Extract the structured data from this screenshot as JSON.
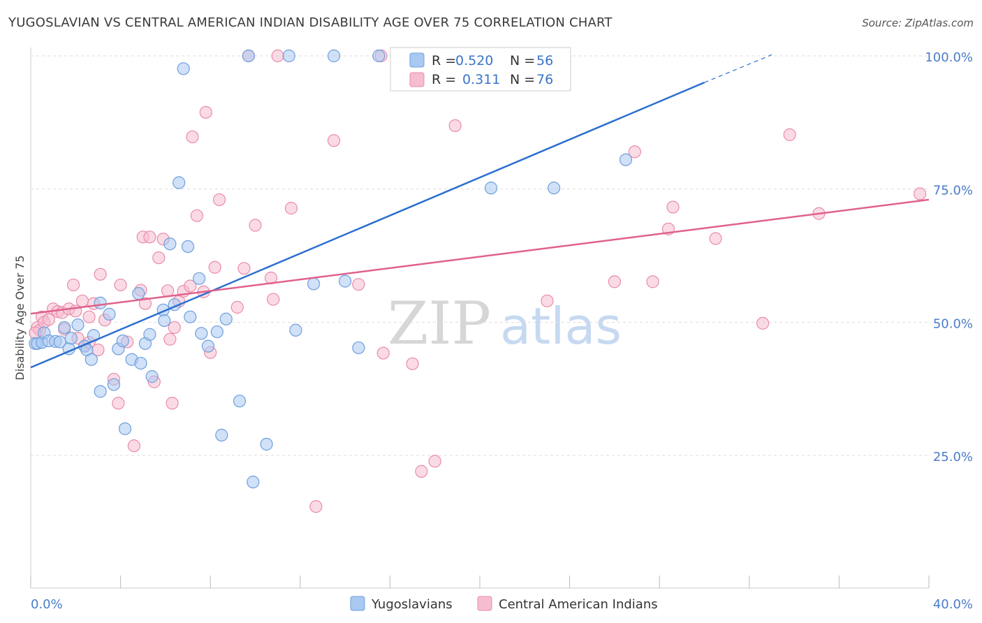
{
  "title": "YUGOSLAVIAN VS CENTRAL AMERICAN INDIAN DISABILITY AGE OVER 75 CORRELATION CHART",
  "source": "Source: ZipAtlas.com",
  "watermark": {
    "zip": "ZIP",
    "atlas": "atlas"
  },
  "colors": {
    "blue_fill": "#a9c8f2",
    "blue_stroke": "#6f9fdc",
    "blue_line": "#2a6fd0",
    "pink_fill": "#f6bdd0",
    "pink_stroke": "#e98bab",
    "pink_line": "#e0618c",
    "grid": "#dddddd",
    "tick_text": "#4a7cc9"
  },
  "legend": {
    "rows": [
      {
        "r_label": "R =",
        "r_value": "0.520",
        "n_label": "N =",
        "n_value": "56",
        "series": "blue"
      },
      {
        "r_label": "R =",
        "r_value": "0.311",
        "n_label": "N =",
        "n_value": "76",
        "series": "pink"
      }
    ]
  },
  "bottom_legend": [
    {
      "label": "Yugoslavians",
      "series": "blue"
    },
    {
      "label": "Central American Indians",
      "series": "pink"
    }
  ],
  "chart_data": {
    "type": "scatter",
    "title": "YUGOSLAVIAN VS CENTRAL AMERICAN INDIAN DISABILITY AGE OVER 75 CORRELATION CHART",
    "xlabel": "",
    "ylabel": "Disability Age Over 75",
    "xlim": [
      0,
      40
    ],
    "ylim": [
      0,
      105
    ],
    "x_tick_labels": [
      {
        "value": 0,
        "label": "0.0%"
      },
      {
        "value": 40,
        "label": "40.0%"
      }
    ],
    "y_tick_labels": [
      {
        "value": 25,
        "label": "25.0%"
      },
      {
        "value": 50,
        "label": "50.0%"
      },
      {
        "value": 75,
        "label": "75.0%"
      },
      {
        "value": 100,
        "label": "100.0%"
      }
    ],
    "grid": true,
    "series": [
      {
        "name": "Yugoslavians",
        "color": "blue",
        "trend": {
          "x0": 0,
          "y0": 41.5,
          "x1": 30.0,
          "y1": 95.0,
          "dash_to_x": 33.0,
          "dash_to_y": 100.2
        },
        "points": [
          [
            0.2,
            46
          ],
          [
            0.3,
            46
          ],
          [
            0.5,
            46.2
          ],
          [
            0.6,
            48
          ],
          [
            0.8,
            46.5
          ],
          [
            1.1,
            46.4
          ],
          [
            1.3,
            46.3
          ],
          [
            1.5,
            49
          ],
          [
            1.7,
            45
          ],
          [
            1.8,
            47
          ],
          [
            2.1,
            49.5
          ],
          [
            2.4,
            45.5
          ],
          [
            2.5,
            44.8
          ],
          [
            2.7,
            43
          ],
          [
            2.8,
            47.5
          ],
          [
            3.1,
            37
          ],
          [
            3.1,
            53.6
          ],
          [
            3.5,
            51.5
          ],
          [
            3.7,
            38.3
          ],
          [
            3.9,
            45
          ],
          [
            4.1,
            46.5
          ],
          [
            4.2,
            30
          ],
          [
            4.5,
            43
          ],
          [
            4.8,
            55.4
          ],
          [
            4.9,
            42.3
          ],
          [
            5.1,
            46
          ],
          [
            5.3,
            47.7
          ],
          [
            5.4,
            39.8
          ],
          [
            5.9,
            52.3
          ],
          [
            5.95,
            50.3
          ],
          [
            6.2,
            64.7
          ],
          [
            6.4,
            53.3
          ],
          [
            6.6,
            76.2
          ],
          [
            6.8,
            97.6
          ],
          [
            7.0,
            64.2
          ],
          [
            7.1,
            51
          ],
          [
            7.5,
            58.2
          ],
          [
            7.6,
            47.9
          ],
          [
            7.9,
            45.5
          ],
          [
            8.3,
            48.2
          ],
          [
            8.5,
            28.8
          ],
          [
            8.7,
            50.6
          ],
          [
            9.3,
            35.2
          ],
          [
            9.7,
            100
          ],
          [
            9.9,
            20
          ],
          [
            10.5,
            27.1
          ],
          [
            11.5,
            100
          ],
          [
            11.8,
            48.5
          ],
          [
            12.6,
            57.2
          ],
          [
            13.5,
            100
          ],
          [
            14.0,
            57.7
          ],
          [
            14.6,
            45.2
          ],
          [
            15.5,
            100
          ],
          [
            23.3,
            75.2
          ],
          [
            26.5,
            80.5
          ],
          [
            20.5,
            75.2
          ]
        ]
      },
      {
        "name": "Central American Indians",
        "color": "pink",
        "trend": {
          "x0": 0,
          "y0": 51.6,
          "x1": 40,
          "y1": 73.0
        },
        "points": [
          [
            0.3,
            49
          ],
          [
            0.4,
            48.5
          ],
          [
            0.5,
            51
          ],
          [
            0.6,
            50
          ],
          [
            0.8,
            50.5
          ],
          [
            1.0,
            52.5
          ],
          [
            1.2,
            52
          ],
          [
            1.4,
            51.8
          ],
          [
            1.7,
            52.5
          ],
          [
            1.9,
            57
          ],
          [
            2.0,
            52.1
          ],
          [
            2.1,
            47
          ],
          [
            2.3,
            54
          ],
          [
            2.4,
            45.5
          ],
          [
            2.6,
            51
          ],
          [
            2.8,
            53.5
          ],
          [
            3.0,
            44.8
          ],
          [
            3.1,
            59
          ],
          [
            3.3,
            50.4
          ],
          [
            3.7,
            39.3
          ],
          [
            3.9,
            34.8
          ],
          [
            4.0,
            57
          ],
          [
            4.3,
            46.3
          ],
          [
            4.6,
            26.8
          ],
          [
            4.9,
            56
          ],
          [
            5.0,
            66
          ],
          [
            5.1,
            53.5
          ],
          [
            5.3,
            66
          ],
          [
            5.5,
            38.8
          ],
          [
            5.7,
            62.1
          ],
          [
            5.9,
            65.6
          ],
          [
            6.1,
            55.9
          ],
          [
            6.3,
            34.8
          ],
          [
            6.4,
            49
          ],
          [
            6.6,
            53.9
          ],
          [
            6.8,
            55.8
          ],
          [
            7.1,
            56.8
          ],
          [
            7.2,
            84.8
          ],
          [
            7.4,
            70
          ],
          [
            7.7,
            55.7
          ],
          [
            7.8,
            89.4
          ],
          [
            8.0,
            44.3
          ],
          [
            8.2,
            60.3
          ],
          [
            8.4,
            73
          ],
          [
            9.2,
            52.8
          ],
          [
            9.5,
            60.1
          ],
          [
            9.7,
            100
          ],
          [
            10.0,
            68.2
          ],
          [
            10.7,
            58.3
          ],
          [
            10.8,
            54.3
          ],
          [
            11.0,
            100
          ],
          [
            11.6,
            71.4
          ],
          [
            12.7,
            15.4
          ],
          [
            13.5,
            84.1
          ],
          [
            14.6,
            57.1
          ],
          [
            15.6,
            100
          ],
          [
            15.7,
            44.2
          ],
          [
            17.0,
            42.2
          ],
          [
            17.4,
            22
          ],
          [
            18.0,
            23.9
          ],
          [
            18.9,
            86.9
          ],
          [
            23.0,
            54
          ],
          [
            26.0,
            57.6
          ],
          [
            26.9,
            82
          ],
          [
            27.7,
            57.6
          ],
          [
            28.4,
            67.5
          ],
          [
            28.6,
            71.6
          ],
          [
            30.5,
            65.7
          ],
          [
            32.6,
            49.8
          ],
          [
            33.8,
            85.2
          ],
          [
            35.1,
            70.4
          ],
          [
            39.6,
            74.1
          ],
          [
            0.2,
            48
          ],
          [
            1.5,
            48.7
          ],
          [
            2.6,
            46.2
          ],
          [
            6.2,
            46.8
          ]
        ]
      }
    ]
  }
}
